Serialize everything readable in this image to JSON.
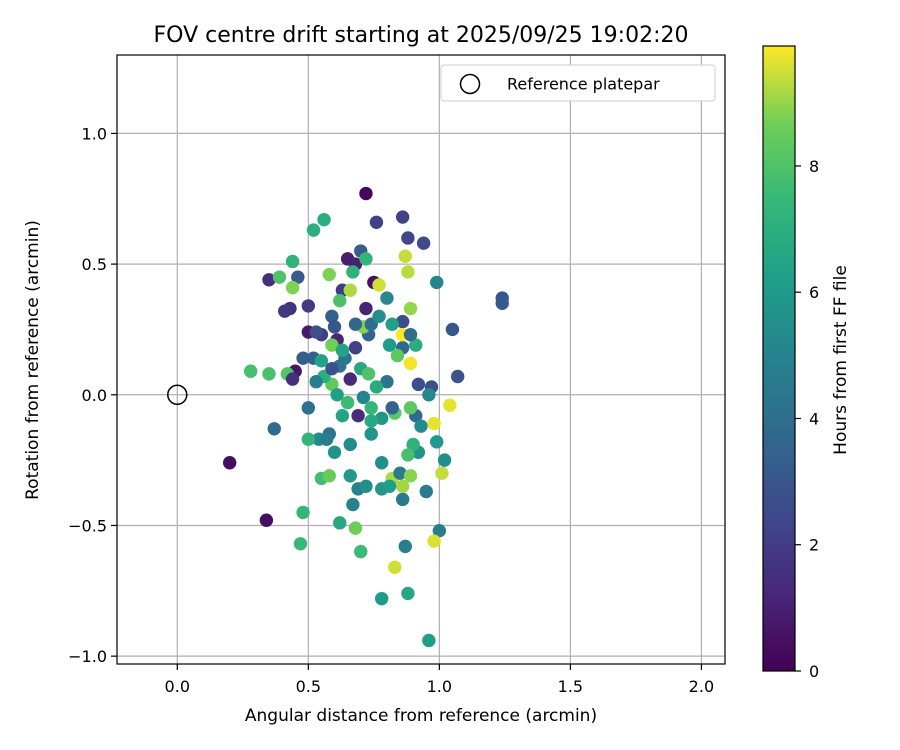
{
  "chart_data": {
    "type": "scatter",
    "title": "FOV centre drift starting at 2025/09/25 19:02:20",
    "xlabel": "Angular distance from reference (arcmin)",
    "ylabel": "Rotation from reference (arcmin)",
    "xlim": [
      -0.23,
      2.09
    ],
    "ylim": [
      -1.03,
      1.3
    ],
    "xticks": [
      0.0,
      0.5,
      1.0,
      1.5,
      2.0
    ],
    "xtick_labels": [
      "0.0",
      "0.5",
      "1.0",
      "1.5",
      "2.0"
    ],
    "yticks": [
      -1.0,
      -0.5,
      0.0,
      0.5,
      1.0
    ],
    "ytick_labels": [
      "−1.0",
      "−0.5",
      "0.0",
      "0.5",
      "1.0"
    ],
    "grid": true,
    "legend": {
      "placement": "top-right",
      "entries": [
        "Reference platepar"
      ]
    },
    "reference_point": {
      "x": 0.0,
      "y": 0.0
    },
    "colorbar": {
      "label": "Hours from first FF file",
      "range": [
        0,
        9.9
      ],
      "ticks": [
        0,
        2,
        4,
        6,
        8
      ],
      "tick_labels": [
        "0",
        "2",
        "4",
        "6",
        "8"
      ],
      "colormap": "viridis"
    },
    "points": [
      {
        "x": 0.72,
        "y": 0.77,
        "c": 0.2
      },
      {
        "x": 0.2,
        "y": -0.26,
        "c": 0.4
      },
      {
        "x": 0.34,
        "y": -0.48,
        "c": 0.4
      },
      {
        "x": 0.75,
        "y": 0.43,
        "c": 0.5
      },
      {
        "x": 0.45,
        "y": 0.09,
        "c": 0.7
      },
      {
        "x": 0.5,
        "y": 0.24,
        "c": 0.8
      },
      {
        "x": 0.65,
        "y": 0.52,
        "c": 0.9
      },
      {
        "x": 0.68,
        "y": 0.5,
        "c": 1.0
      },
      {
        "x": 0.72,
        "y": 0.33,
        "c": 1.1
      },
      {
        "x": 0.61,
        "y": 0.21,
        "c": 1.2
      },
      {
        "x": 0.66,
        "y": 0.06,
        "c": 1.3
      },
      {
        "x": 0.69,
        "y": -0.08,
        "c": 1.4
      },
      {
        "x": 0.35,
        "y": 0.44,
        "c": 1.5
      },
      {
        "x": 0.43,
        "y": 0.33,
        "c": 1.6
      },
      {
        "x": 0.41,
        "y": 0.32,
        "c": 1.8
      },
      {
        "x": 0.5,
        "y": 0.34,
        "c": 1.9
      },
      {
        "x": 0.63,
        "y": 0.4,
        "c": 2.0
      },
      {
        "x": 0.55,
        "y": 0.23,
        "c": 2.1
      },
      {
        "x": 0.76,
        "y": 0.66,
        "c": 2.2
      },
      {
        "x": 0.86,
        "y": 0.68,
        "c": 2.3
      },
      {
        "x": 0.88,
        "y": 0.6,
        "c": 2.4
      },
      {
        "x": 0.94,
        "y": 0.58,
        "c": 2.5
      },
      {
        "x": 0.86,
        "y": 0.28,
        "c": 2.6
      },
      {
        "x": 0.92,
        "y": 0.04,
        "c": 2.7
      },
      {
        "x": 0.97,
        "y": 0.03,
        "c": 2.8
      },
      {
        "x": 1.07,
        "y": 0.07,
        "c": 2.9
      },
      {
        "x": 1.05,
        "y": 0.25,
        "c": 3.0
      },
      {
        "x": 1.24,
        "y": 0.37,
        "c": 3.0
      },
      {
        "x": 1.24,
        "y": 0.35,
        "c": 3.1
      },
      {
        "x": 0.46,
        "y": 0.45,
        "c": 3.2
      },
      {
        "x": 0.7,
        "y": 0.55,
        "c": 3.3
      },
      {
        "x": 0.59,
        "y": 0.3,
        "c": 3.4
      },
      {
        "x": 0.52,
        "y": 0.14,
        "c": 3.5
      },
      {
        "x": 0.73,
        "y": 0.23,
        "c": 3.6
      },
      {
        "x": 0.86,
        "y": 0.18,
        "c": 3.7
      },
      {
        "x": 0.91,
        "y": -0.08,
        "c": 3.8
      },
      {
        "x": 0.37,
        "y": -0.13,
        "c": 3.9
      },
      {
        "x": 0.5,
        "y": -0.05,
        "c": 4.1
      },
      {
        "x": 0.62,
        "y": 0.11,
        "c": 4.2
      },
      {
        "x": 0.58,
        "y": -0.15,
        "c": 4.3
      },
      {
        "x": 0.8,
        "y": 0.05,
        "c": 4.4
      },
      {
        "x": 0.86,
        "y": -0.4,
        "c": 4.5
      },
      {
        "x": 0.95,
        "y": -0.37,
        "c": 4.6
      },
      {
        "x": 1.0,
        "y": -0.52,
        "c": 4.7
      },
      {
        "x": 0.87,
        "y": -0.58,
        "c": 4.8
      },
      {
        "x": 0.69,
        "y": -0.36,
        "c": 4.9
      },
      {
        "x": 0.67,
        "y": -0.42,
        "c": 5.0
      },
      {
        "x": 0.99,
        "y": 0.43,
        "c": 5.1
      },
      {
        "x": 0.96,
        "y": 0.0,
        "c": 5.2
      },
      {
        "x": 0.54,
        "y": -0.17,
        "c": 5.3
      },
      {
        "x": 0.66,
        "y": -0.19,
        "c": 5.4
      },
      {
        "x": 0.72,
        "y": -0.35,
        "c": 5.5
      },
      {
        "x": 0.78,
        "y": -0.26,
        "c": 5.6
      },
      {
        "x": 0.92,
        "y": -0.22,
        "c": 5.7
      },
      {
        "x": 0.74,
        "y": -0.15,
        "c": 5.8
      },
      {
        "x": 0.78,
        "y": -0.36,
        "c": 5.9
      },
      {
        "x": 0.99,
        "y": -0.18,
        "c": 6.0
      },
      {
        "x": 0.78,
        "y": -0.78,
        "c": 6.1
      },
      {
        "x": 0.96,
        "y": -0.94,
        "c": 6.2
      },
      {
        "x": 0.82,
        "y": 0.27,
        "c": 6.3
      },
      {
        "x": 0.55,
        "y": 0.13,
        "c": 6.4
      },
      {
        "x": 0.63,
        "y": -0.08,
        "c": 6.5
      },
      {
        "x": 0.88,
        "y": -0.76,
        "c": 6.6
      },
      {
        "x": 0.62,
        "y": -0.49,
        "c": 6.7
      },
      {
        "x": 0.76,
        "y": 0.03,
        "c": 6.8
      },
      {
        "x": 0.56,
        "y": 0.67,
        "c": 6.9
      },
      {
        "x": 0.52,
        "y": 0.63,
        "c": 7.0
      },
      {
        "x": 0.67,
        "y": 0.47,
        "c": 7.1
      },
      {
        "x": 0.44,
        "y": 0.51,
        "c": 7.2
      },
      {
        "x": 0.5,
        "y": -0.17,
        "c": 7.3
      },
      {
        "x": 0.48,
        "y": -0.45,
        "c": 7.4
      },
      {
        "x": 0.47,
        "y": -0.57,
        "c": 7.5
      },
      {
        "x": 0.7,
        "y": -0.6,
        "c": 7.6
      },
      {
        "x": 0.55,
        "y": -0.32,
        "c": 7.7
      },
      {
        "x": 0.28,
        "y": 0.09,
        "c": 7.8
      },
      {
        "x": 0.35,
        "y": 0.08,
        "c": 7.9
      },
      {
        "x": 0.39,
        "y": 0.45,
        "c": 8.0
      },
      {
        "x": 0.42,
        "y": 0.08,
        "c": 8.1
      },
      {
        "x": 0.83,
        "y": -0.07,
        "c": 8.2
      },
      {
        "x": 0.89,
        "y": -0.05,
        "c": 8.3
      },
      {
        "x": 0.59,
        "y": 0.04,
        "c": 8.4
      },
      {
        "x": 0.58,
        "y": -0.31,
        "c": 8.5
      },
      {
        "x": 0.68,
        "y": -0.51,
        "c": 8.6
      },
      {
        "x": 0.59,
        "y": 0.19,
        "c": 8.7
      },
      {
        "x": 0.44,
        "y": 0.41,
        "c": 8.8
      },
      {
        "x": 0.71,
        "y": 0.26,
        "c": 8.9
      },
      {
        "x": 0.89,
        "y": 0.33,
        "c": 9.0
      },
      {
        "x": 0.86,
        "y": -0.35,
        "c": 9.1
      },
      {
        "x": 0.82,
        "y": -0.32,
        "c": 9.2
      },
      {
        "x": 0.88,
        "y": 0.47,
        "c": 9.3
      },
      {
        "x": 0.87,
        "y": 0.53,
        "c": 9.4
      },
      {
        "x": 0.83,
        "y": -0.66,
        "c": 9.5
      },
      {
        "x": 0.98,
        "y": -0.56,
        "c": 9.6
      },
      {
        "x": 1.04,
        "y": -0.04,
        "c": 9.7
      },
      {
        "x": 0.89,
        "y": 0.12,
        "c": 9.8
      },
      {
        "x": 0.86,
        "y": 0.23,
        "c": 9.9
      },
      {
        "x": 0.74,
        "y": 0.27,
        "c": 4.0
      },
      {
        "x": 0.6,
        "y": 0.26,
        "c": 3.0
      },
      {
        "x": 0.77,
        "y": 0.3,
        "c": 5.5
      },
      {
        "x": 0.81,
        "y": 0.19,
        "c": 6.1
      },
      {
        "x": 0.68,
        "y": 0.18,
        "c": 2.2
      },
      {
        "x": 0.7,
        "y": 0.1,
        "c": 6.6
      },
      {
        "x": 0.73,
        "y": 0.08,
        "c": 8.0
      },
      {
        "x": 0.64,
        "y": 0.14,
        "c": 4.4
      },
      {
        "x": 0.56,
        "y": 0.07,
        "c": 7.0
      },
      {
        "x": 0.53,
        "y": 0.05,
        "c": 4.8
      },
      {
        "x": 0.61,
        "y": 0.0,
        "c": 6.3
      },
      {
        "x": 0.65,
        "y": -0.03,
        "c": 7.6
      },
      {
        "x": 0.71,
        "y": -0.01,
        "c": 5.1
      },
      {
        "x": 0.78,
        "y": -0.09,
        "c": 5.9
      },
      {
        "x": 0.74,
        "y": -0.1,
        "c": 6.7
      },
      {
        "x": 0.82,
        "y": -0.05,
        "c": 3.5
      },
      {
        "x": 0.9,
        "y": -0.19,
        "c": 7.2
      },
      {
        "x": 0.88,
        "y": -0.23,
        "c": 7.8
      },
      {
        "x": 0.85,
        "y": -0.3,
        "c": 4.6
      },
      {
        "x": 0.89,
        "y": -0.31,
        "c": 8.9
      },
      {
        "x": 0.66,
        "y": -0.31,
        "c": 6.0
      },
      {
        "x": 0.6,
        "y": -0.22,
        "c": 5.7
      },
      {
        "x": 0.57,
        "y": -0.17,
        "c": 4.7
      },
      {
        "x": 0.53,
        "y": 0.24,
        "c": 2.7
      },
      {
        "x": 0.48,
        "y": 0.14,
        "c": 3.3
      },
      {
        "x": 0.44,
        "y": 0.06,
        "c": 1.6
      },
      {
        "x": 0.58,
        "y": 0.46,
        "c": 8.8
      },
      {
        "x": 0.62,
        "y": 0.36,
        "c": 7.9
      },
      {
        "x": 0.66,
        "y": 0.4,
        "c": 9.2
      },
      {
        "x": 0.72,
        "y": 0.52,
        "c": 7.3
      },
      {
        "x": 0.77,
        "y": 0.42,
        "c": 9.5
      },
      {
        "x": 0.8,
        "y": 0.37,
        "c": 5.2
      },
      {
        "x": 0.84,
        "y": 0.15,
        "c": 8.3
      },
      {
        "x": 0.91,
        "y": 0.19,
        "c": 6.9
      },
      {
        "x": 0.89,
        "y": 0.23,
        "c": 3.9
      },
      {
        "x": 0.93,
        "y": -0.12,
        "c": 5.3
      },
      {
        "x": 1.01,
        "y": -0.3,
        "c": 9.4
      },
      {
        "x": 1.02,
        "y": -0.25,
        "c": 5.4
      },
      {
        "x": 0.98,
        "y": -0.11,
        "c": 9.7
      },
      {
        "x": 0.81,
        "y": -0.35,
        "c": 6.2
      },
      {
        "x": 0.74,
        "y": -0.05,
        "c": 7.4
      },
      {
        "x": 0.68,
        "y": 0.27,
        "c": 3.7
      },
      {
        "x": 0.59,
        "y": 0.1,
        "c": 2.9
      },
      {
        "x": 0.63,
        "y": 0.17,
        "c": 6.5
      }
    ]
  }
}
